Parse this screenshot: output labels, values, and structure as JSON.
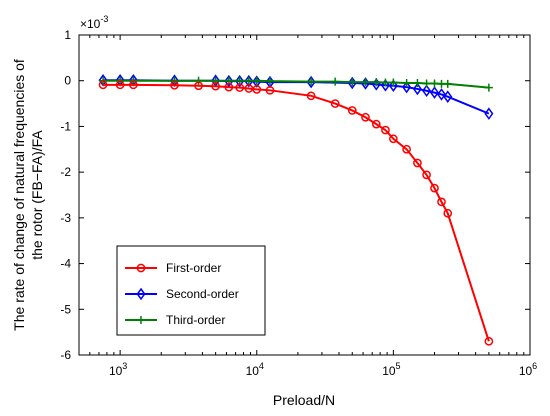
{
  "chart_data": {
    "type": "line",
    "xscale": "log",
    "xlim": [
      500,
      1000000
    ],
    "ylim": [
      -0.006,
      0.001
    ],
    "multiplier_label": "×10",
    "multiplier_exp": "-3",
    "xlabel": "Preload/N",
    "ylabel_lines": [
      "The rate of change of natural frequencies of",
      "the rotor (FB−FA)/FA"
    ],
    "x_ticks": [
      {
        "value": 1000,
        "base": "10",
        "exp": "3"
      },
      {
        "value": 10000,
        "base": "10",
        "exp": "4"
      },
      {
        "value": 100000,
        "base": "10",
        "exp": "5"
      },
      {
        "value": 1000000,
        "base": "10",
        "exp": "6"
      }
    ],
    "y_ticks": [
      {
        "value": 0.001,
        "label": "1"
      },
      {
        "value": 0,
        "label": "0"
      },
      {
        "value": -0.001,
        "label": "-1"
      },
      {
        "value": -0.002,
        "label": "-2"
      },
      {
        "value": -0.003,
        "label": "-3"
      },
      {
        "value": -0.004,
        "label": "-4"
      },
      {
        "value": -0.005,
        "label": "-5"
      },
      {
        "value": -0.006,
        "label": "-6"
      }
    ],
    "grid": false,
    "legend_position": "lower-left",
    "series": [
      {
        "name": "First-order",
        "color": "#ff0000",
        "marker": "circle",
        "points": [
          [
            750,
            -9e-05
          ],
          [
            1000,
            -9e-05
          ],
          [
            1250,
            -9e-05
          ],
          [
            2500,
            -0.0001
          ],
          [
            3750,
            -0.00011
          ],
          [
            5000,
            -0.00012
          ],
          [
            6250,
            -0.00014
          ],
          [
            7500,
            -0.00015
          ],
          [
            8750,
            -0.00017
          ],
          [
            10000,
            -0.00019
          ],
          [
            12500,
            -0.00021
          ],
          [
            25000,
            -0.00033
          ],
          [
            37500,
            -0.0005
          ],
          [
            50000,
            -0.00065
          ],
          [
            62500,
            -0.0008
          ],
          [
            75000,
            -0.00095
          ],
          [
            87500,
            -0.00108
          ],
          [
            100000,
            -0.00127
          ],
          [
            125000,
            -0.0015
          ],
          [
            150000,
            -0.0018
          ],
          [
            175000,
            -0.00206
          ],
          [
            200000,
            -0.00235
          ],
          [
            225000,
            -0.00265
          ],
          [
            250000,
            -0.0029
          ],
          [
            500000,
            -0.0057
          ]
        ]
      },
      {
        "name": "Second-order",
        "color": "#0000ff",
        "marker": "diamond",
        "points": [
          [
            750,
            1e-05
          ],
          [
            1000,
            1e-05
          ],
          [
            1250,
            1e-05
          ],
          [
            2500,
            0.0
          ],
          [
            5000,
            0.0
          ],
          [
            6250,
            -1e-05
          ],
          [
            7500,
            -1e-05
          ],
          [
            8750,
            -1e-05
          ],
          [
            10000,
            -2e-05
          ],
          [
            12500,
            -3e-05
          ],
          [
            25000,
            -3e-05
          ],
          [
            50000,
            -5e-05
          ],
          [
            62500,
            -6e-05
          ],
          [
            75000,
            -8e-05
          ],
          [
            87500,
            -0.0001
          ],
          [
            100000,
            -0.00011
          ],
          [
            125000,
            -0.00014
          ],
          [
            150000,
            -0.00018
          ],
          [
            175000,
            -0.00022
          ],
          [
            200000,
            -0.00026
          ],
          [
            225000,
            -0.0003
          ],
          [
            250000,
            -0.00035
          ],
          [
            500000,
            -0.00072
          ]
        ]
      },
      {
        "name": "Third-order",
        "color": "#008000",
        "marker": "plus",
        "points": [
          [
            750,
            0.0
          ],
          [
            1000,
            0.0
          ],
          [
            1250,
            0.0
          ],
          [
            2500,
            0.0
          ],
          [
            3750,
            0.0
          ],
          [
            5000,
            0.0
          ],
          [
            6250,
            0.0
          ],
          [
            7500,
            0.0
          ],
          [
            8750,
            0.0
          ],
          [
            10000,
            0.0
          ],
          [
            12500,
            -1e-05
          ],
          [
            25000,
            -2e-05
          ],
          [
            37500,
            -2e-05
          ],
          [
            50000,
            -3e-05
          ],
          [
            62500,
            -3e-05
          ],
          [
            75000,
            -3e-05
          ],
          [
            87500,
            -4e-05
          ],
          [
            100000,
            -4e-05
          ],
          [
            125000,
            -5e-05
          ],
          [
            150000,
            -5e-05
          ],
          [
            175000,
            -6e-05
          ],
          [
            200000,
            -6e-05
          ],
          [
            225000,
            -7e-05
          ],
          [
            250000,
            -7e-05
          ],
          [
            500000,
            -0.00015
          ]
        ]
      }
    ]
  }
}
